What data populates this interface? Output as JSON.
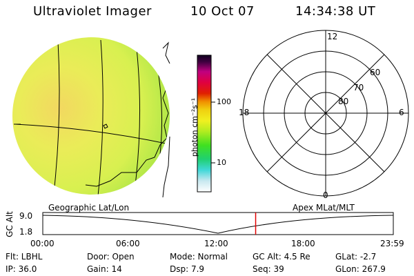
{
  "header": {
    "title": "Ultraviolet Imager",
    "date": "10 Oct 07",
    "time": "14:34:38 UT"
  },
  "colorbar": {
    "unit_label": "photon cm⁻²s⁻¹",
    "ticks": [
      "100",
      "10"
    ]
  },
  "polar": {
    "mlt_labels": [
      "12",
      "18",
      "6",
      "0"
    ],
    "lat_labels": [
      "60",
      "70",
      "80"
    ]
  },
  "altitude_plot": {
    "left_label": "Geographic Lat/Lon",
    "right_label": "Apex MLat/MLT",
    "y_axis_label": "GC Alt",
    "y_ticks": [
      "9.0",
      "1.8"
    ],
    "x_ticks": [
      "00:00",
      "06:00",
      "12:00",
      "18:00",
      "23:59"
    ],
    "current_time_fraction": 0.6073,
    "marker_color": "#e00000"
  },
  "info": {
    "flt": "Flt: LBHL",
    "door": "Door: Open",
    "mode": "Mode: Normal",
    "gc_alt": "GC Alt: 4.5 Re",
    "glat": "GLat:  -2.7",
    "ip": "IP: 36.0",
    "gain": "Gain: 14",
    "dsp": "Dsp:    7.9",
    "seq": "Seq: 39",
    "glon": "GLon: 267.9"
  }
}
